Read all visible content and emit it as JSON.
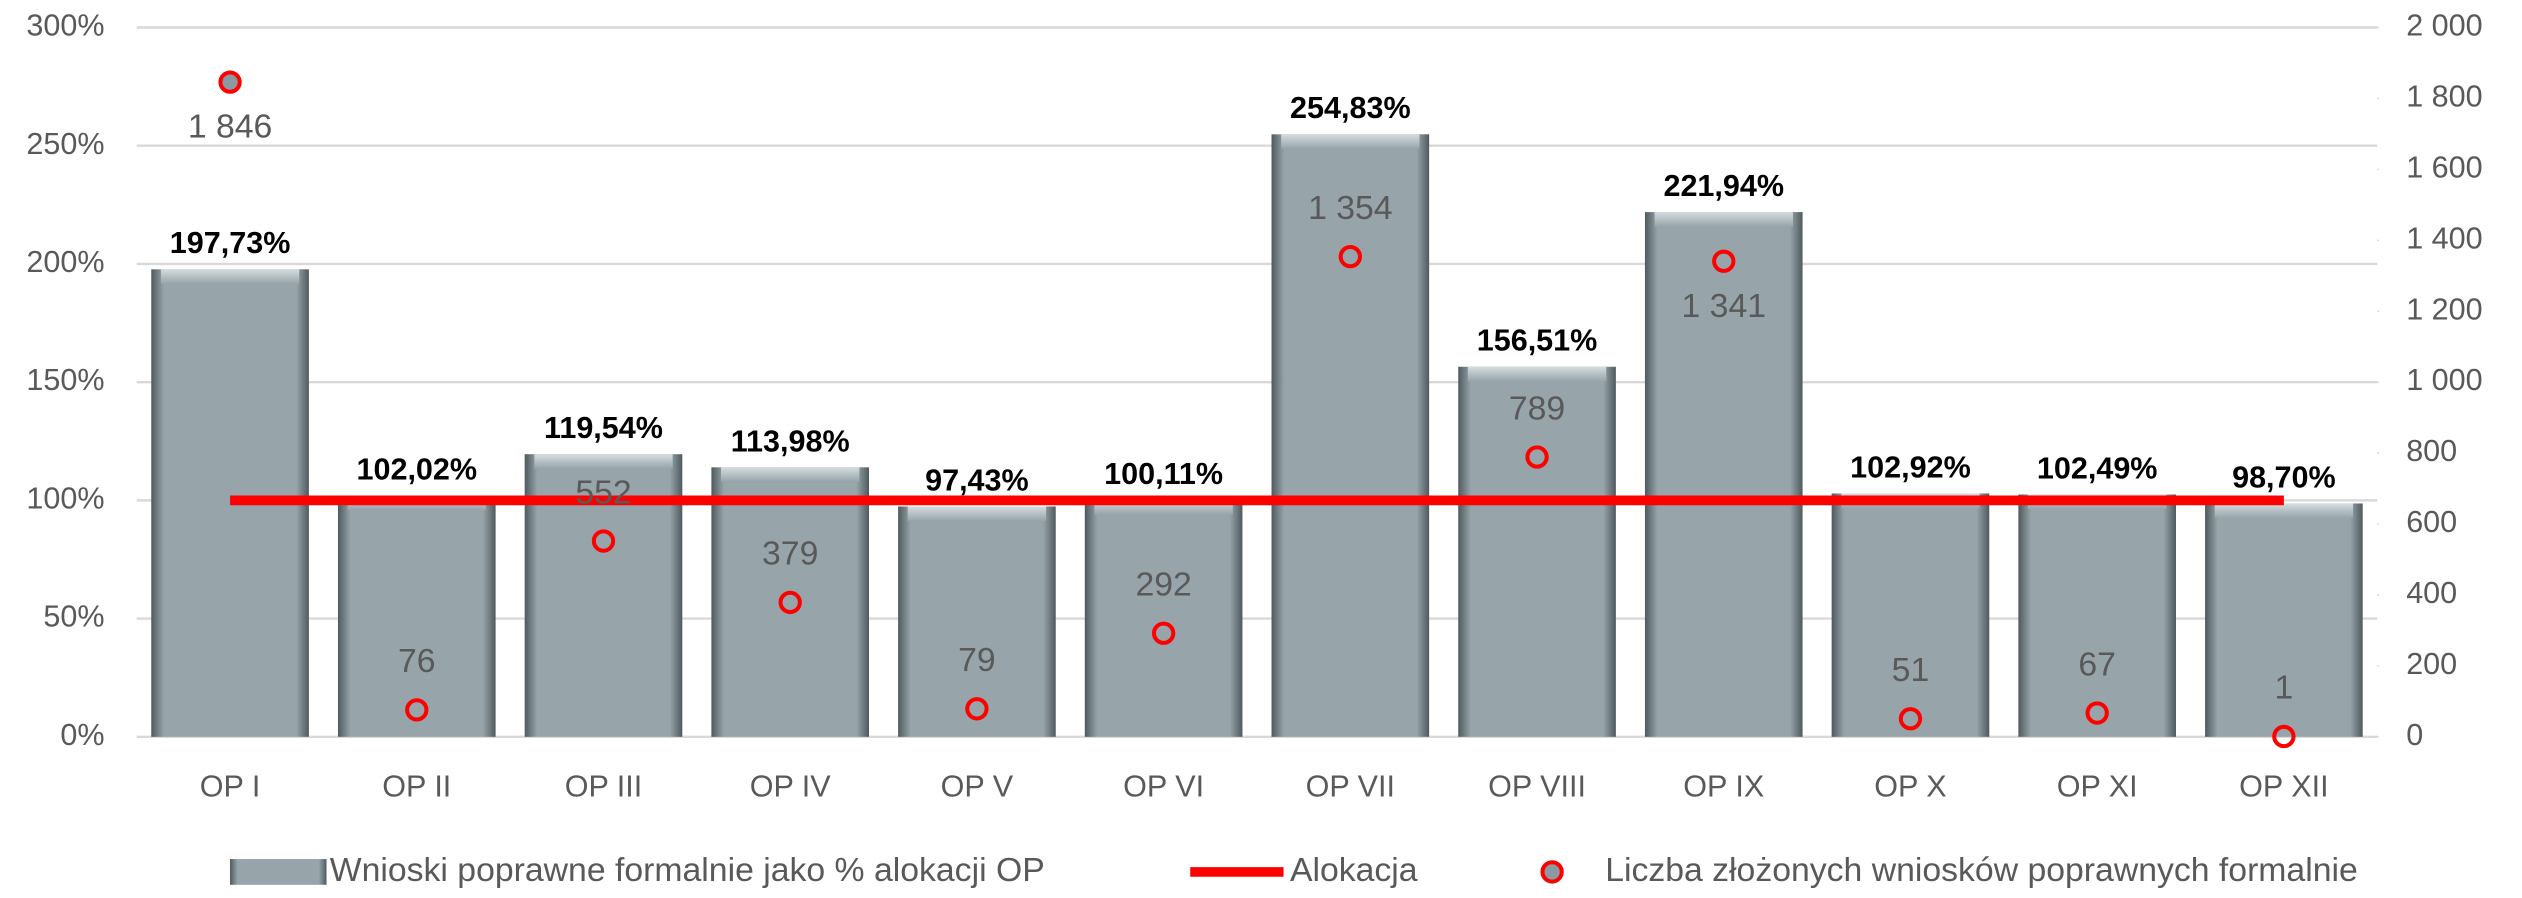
{
  "chart_data": {
    "type": "bar",
    "categories": [
      "OP I",
      "OP II",
      "OP III",
      "OP IV",
      "OP V",
      "OP VI",
      "OP VII",
      "OP VIII",
      "OP IX",
      "OP X",
      "OP XI",
      "OP XII"
    ],
    "series": [
      {
        "name": "Wnioski poprawne formalnie jako % alokacji OP",
        "type": "bar",
        "color": "#97a4a9",
        "values": [
          197.73,
          102.02,
          119.54,
          113.98,
          97.43,
          100.11,
          254.83,
          156.51,
          221.94,
          102.92,
          102.49,
          98.7
        ],
        "value_labels": [
          "197,73%",
          "102,02%",
          "119,54%",
          "113,98%",
          "97,43%",
          "100,11%",
          "254,83%",
          "156,51%",
          "221,94%",
          "102,92%",
          "102,49%",
          "98,70%"
        ]
      },
      {
        "name": "Alokacja",
        "type": "line",
        "color": "#ff0000",
        "values": [
          100,
          100,
          100,
          100,
          100,
          100,
          100,
          100,
          100,
          100,
          100,
          100
        ]
      },
      {
        "name": "Liczba złożonych wniosków poprawnych formalnie",
        "type": "scatter",
        "axis": "y2",
        "color": "#ff0000",
        "values": [
          1846,
          76,
          552,
          379,
          79,
          292,
          1354,
          789,
          1341,
          51,
          67,
          1
        ],
        "value_labels": [
          "1 846",
          "76",
          "552",
          "379",
          "79",
          "292",
          "1 354",
          "789",
          "1 341",
          "51",
          "67",
          "1"
        ]
      }
    ],
    "ylim": [
      0,
      300
    ],
    "yticks": [
      {
        "value": 0,
        "label": "0%"
      },
      {
        "value": 50,
        "label": "50%"
      },
      {
        "value": 100,
        "label": "100%"
      },
      {
        "value": 150,
        "label": "150%"
      },
      {
        "value": 200,
        "label": "200%"
      },
      {
        "value": 250,
        "label": "250%"
      },
      {
        "value": 300,
        "label": "300%"
      }
    ],
    "y2lim": [
      0,
      2000
    ],
    "y2ticks": [
      0,
      200,
      400,
      600,
      800,
      {
        "value": 1000,
        "label": "1 000"
      },
      {
        "value": 1200,
        "label": "1 200"
      },
      {
        "value": 1400,
        "label": "1 400"
      },
      {
        "value": 1600,
        "label": "1 600"
      },
      {
        "value": 1800,
        "label": "1 800"
      },
      {
        "value": 2000,
        "label": "2 000"
      }
    ],
    "grid": true,
    "legend": "bottom"
  }
}
